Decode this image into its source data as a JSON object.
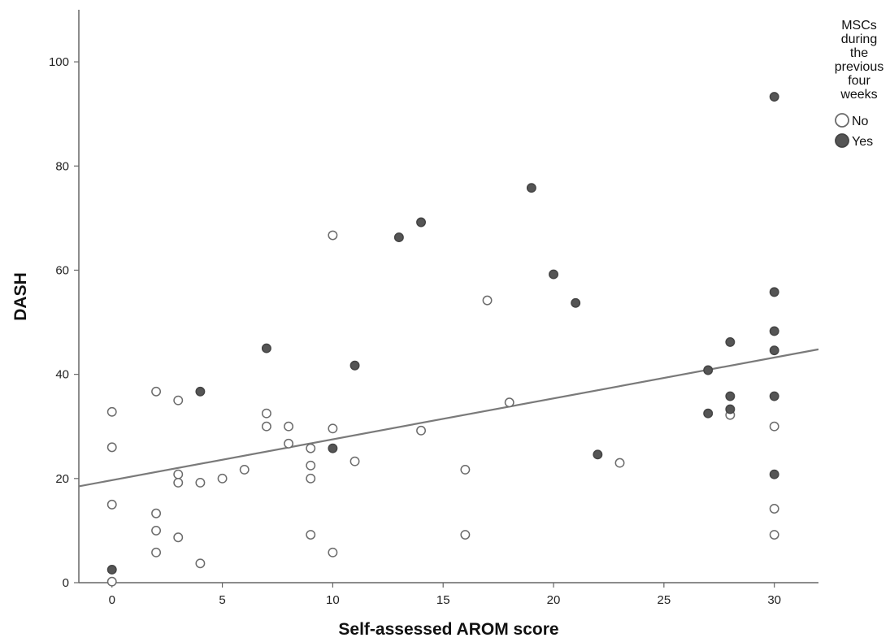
{
  "chart_data": {
    "type": "scatter",
    "xlabel": "Self-assessed AROM score",
    "ylabel": "DASH",
    "xlim": [
      -1.5,
      32
    ],
    "ylim": [
      0,
      110
    ],
    "xticks": [
      0,
      5,
      10,
      15,
      20,
      25,
      30
    ],
    "yticks": [
      0,
      20,
      40,
      60,
      80,
      100
    ],
    "grid": false,
    "legend": {
      "title_lines": [
        "MSCs",
        "during",
        "the",
        "previous",
        "four",
        "weeks"
      ],
      "placement": "top-right"
    },
    "series": [
      {
        "name": "No",
        "fill": "#ffffff",
        "stroke": "#6b6b6b",
        "points": [
          [
            0,
            32.8
          ],
          [
            0,
            26.0
          ],
          [
            0,
            15.0
          ],
          [
            0,
            0.2
          ],
          [
            2,
            36.7
          ],
          [
            2,
            13.3
          ],
          [
            2,
            10.0
          ],
          [
            2,
            5.8
          ],
          [
            3,
            35.0
          ],
          [
            3,
            20.8
          ],
          [
            3,
            19.2
          ],
          [
            3,
            8.7
          ],
          [
            4,
            19.2
          ],
          [
            4,
            3.7
          ],
          [
            5,
            20.0
          ],
          [
            6,
            21.7
          ],
          [
            7,
            32.5
          ],
          [
            7,
            30.0
          ],
          [
            8,
            30.0
          ],
          [
            8,
            26.7
          ],
          [
            9,
            25.8
          ],
          [
            9,
            22.5
          ],
          [
            9,
            20.0
          ],
          [
            9,
            9.2
          ],
          [
            10,
            66.7
          ],
          [
            10,
            29.6
          ],
          [
            10,
            5.8
          ],
          [
            11,
            23.3
          ],
          [
            14,
            29.2
          ],
          [
            16,
            21.7
          ],
          [
            16,
            9.2
          ],
          [
            17,
            54.2
          ],
          [
            18,
            34.6
          ],
          [
            23,
            23.0
          ],
          [
            28,
            32.2
          ],
          [
            30,
            30.0
          ],
          [
            30,
            14.2
          ],
          [
            30,
            9.2
          ]
        ]
      },
      {
        "name": "Yes",
        "fill": "#555555",
        "stroke": "#444444",
        "points": [
          [
            0,
            2.5
          ],
          [
            4,
            36.7
          ],
          [
            7,
            45.0
          ],
          [
            10,
            25.8
          ],
          [
            11,
            41.7
          ],
          [
            13,
            66.3
          ],
          [
            14,
            69.2
          ],
          [
            19,
            75.8
          ],
          [
            20,
            59.2
          ],
          [
            21,
            53.7
          ],
          [
            22,
            24.6
          ],
          [
            27,
            40.8
          ],
          [
            27,
            32.5
          ],
          [
            28,
            46.2
          ],
          [
            28,
            35.8
          ],
          [
            28,
            33.3
          ],
          [
            30,
            93.3
          ],
          [
            30,
            55.8
          ],
          [
            30,
            48.3
          ],
          [
            30,
            44.6
          ],
          [
            30,
            35.8
          ],
          [
            30,
            20.8
          ]
        ]
      }
    ],
    "fit_line": {
      "x": [
        -1.5,
        32
      ],
      "y": [
        18.5,
        44.8
      ],
      "color": "#7a7a7a"
    }
  }
}
